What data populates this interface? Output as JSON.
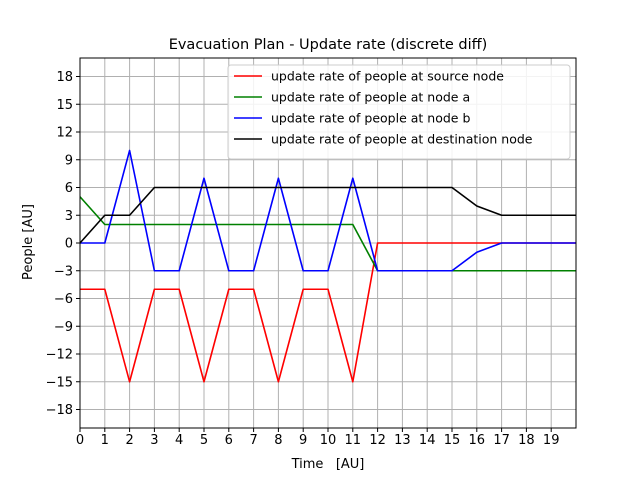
{
  "chart_data": {
    "type": "line",
    "title": "Evacuation Plan - Update rate (discrete diff)",
    "xlabel": "Time   [AU]",
    "ylabel": "People [AU]",
    "xlim": [
      0,
      20
    ],
    "ylim": [
      -20,
      20
    ],
    "grid": true,
    "legend_position": "top-right",
    "x_ticks": [
      0,
      1,
      2,
      3,
      4,
      5,
      6,
      7,
      8,
      9,
      10,
      11,
      12,
      13,
      14,
      15,
      16,
      17,
      18,
      19
    ],
    "y_ticks": [
      -18,
      -15,
      -12,
      -9,
      -6,
      -3,
      0,
      3,
      6,
      9,
      12,
      15,
      18
    ],
    "x": [
      0,
      1,
      2,
      3,
      4,
      5,
      6,
      7,
      8,
      9,
      10,
      11,
      12,
      13,
      14,
      15,
      16,
      17,
      18,
      19,
      20
    ],
    "series": [
      {
        "name": "update rate of people at source node",
        "color": "#ff0000",
        "values": [
          -5,
          -5,
          -15,
          -5,
          -5,
          -15,
          -5,
          -5,
          -15,
          -5,
          -5,
          -15,
          0,
          0,
          0,
          0,
          0,
          0,
          0,
          0,
          0
        ]
      },
      {
        "name": "update rate of people at node a",
        "color": "#008000",
        "values": [
          5,
          2,
          2,
          2,
          2,
          2,
          2,
          2,
          2,
          2,
          2,
          2,
          -3,
          -3,
          -3,
          -3,
          -3,
          -3,
          -3,
          -3,
          -3
        ]
      },
      {
        "name": "update rate of people at node b",
        "color": "#0000ff",
        "values": [
          0,
          0,
          10,
          -3,
          -3,
          7,
          -3,
          -3,
          7,
          -3,
          -3,
          7,
          -3,
          -3,
          -3,
          -3,
          -1,
          0,
          0,
          0,
          0
        ]
      },
      {
        "name": "update rate of people at destination node",
        "color": "#000000",
        "values": [
          0,
          3,
          3,
          6,
          6,
          6,
          6,
          6,
          6,
          6,
          6,
          6,
          6,
          6,
          6,
          6,
          4,
          3,
          3,
          3,
          3
        ]
      }
    ]
  }
}
